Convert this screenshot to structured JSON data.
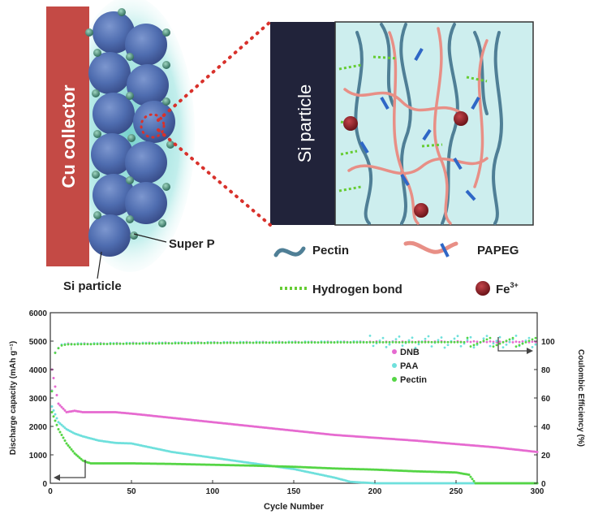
{
  "schematic": {
    "collector_label": "Cu collector",
    "particle_box_label": "Si particle",
    "super_p_label": "Super P",
    "si_particle_label": "Si particle",
    "legend": {
      "pectin": "Pectin",
      "papeg": "PAPEG",
      "hbond": "Hydrogen bond",
      "fe": "Fe",
      "fe_sup": "3+"
    },
    "colors": {
      "collector": "#c44a45",
      "particle": "#4f6db0",
      "pectin": "#4f7f96",
      "papeg": "#e88f86",
      "hbond": "#66cc33",
      "fe": "#8e1d22",
      "box_bg": "#cdeeee"
    }
  },
  "chart_data": {
    "type": "scatter",
    "xlabel": "Cycle Number",
    "ylabel_left": "Discharge capacity (mAh g⁻¹)",
    "ylabel_right": "Coulombic Efficiency (%)",
    "xlim": [
      0,
      300
    ],
    "ylim_left": [
      0,
      6000
    ],
    "ylim_right": [
      0,
      120
    ],
    "x_ticks": [
      "0",
      "50",
      "100",
      "150",
      "200",
      "250",
      "300"
    ],
    "y_ticks_left": [
      "0",
      "1000",
      "2000",
      "3000",
      "4000",
      "5000",
      "6000"
    ],
    "y_ticks_right": [
      "0",
      "20",
      "40",
      "60",
      "80",
      "100"
    ],
    "legend_position": "right",
    "series": [
      {
        "name": "DNB",
        "color": "#e66ad0",
        "x": [
          1,
          5,
          10,
          15,
          20,
          30,
          40,
          50,
          75,
          100,
          125,
          150,
          175,
          200,
          225,
          250,
          275,
          300
        ],
        "y": [
          4000,
          2800,
          2500,
          2550,
          2500,
          2500,
          2500,
          2450,
          2300,
          2150,
          2000,
          1850,
          1700,
          1600,
          1500,
          1380,
          1260,
          1100
        ]
      },
      {
        "name": "PAA",
        "color": "#6fe0dc",
        "x": [
          1,
          5,
          10,
          15,
          20,
          30,
          40,
          50,
          75,
          100,
          125,
          150,
          175,
          185,
          200,
          225,
          250,
          275,
          300
        ],
        "y": [
          2700,
          2150,
          1900,
          1750,
          1650,
          1500,
          1420,
          1400,
          1100,
          900,
          700,
          500,
          200,
          50,
          0,
          0,
          0,
          0,
          0
        ]
      },
      {
        "name": "Pectin",
        "color": "#55d545",
        "x": [
          1,
          3,
          5,
          10,
          15,
          20,
          22,
          25,
          50,
          75,
          100,
          125,
          150,
          175,
          200,
          225,
          250,
          258,
          262,
          280,
          300
        ],
        "y": [
          2500,
          2200,
          1900,
          1400,
          1050,
          800,
          750,
          700,
          700,
          680,
          650,
          620,
          580,
          520,
          480,
          420,
          380,
          300,
          0,
          0,
          0
        ]
      }
    ],
    "coulombic_efficiency": {
      "series": [
        "DNB",
        "PAA",
        "Pectin"
      ],
      "x": [
        1,
        3,
        6,
        10,
        50,
        100,
        150,
        200,
        250,
        270,
        300
      ],
      "y": [
        65,
        92,
        97,
        98,
        98.5,
        99,
        99.3,
        99.5,
        99.6,
        99.5,
        99.5
      ]
    }
  }
}
